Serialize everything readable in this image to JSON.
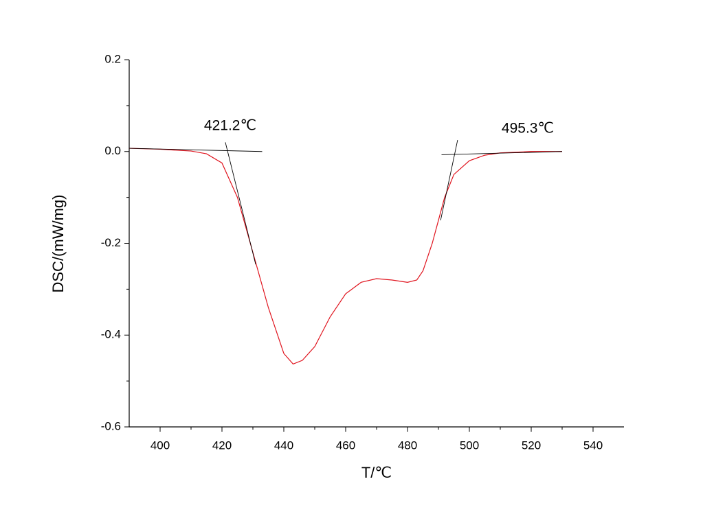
{
  "chart_data": {
    "type": "line",
    "xlabel": "T/℃",
    "ylabel": "DSC/(mW/mg)",
    "x": [
      390,
      400,
      410,
      415,
      420,
      425,
      430,
      435,
      440,
      443,
      446,
      450,
      455,
      460,
      465,
      470,
      475,
      480,
      483,
      485,
      488,
      490,
      492,
      495,
      500,
      505,
      510,
      520,
      530
    ],
    "series": [
      {
        "color": "#e0141e",
        "values": [
          0.007,
          0.005,
          0.001,
          -0.005,
          -0.025,
          -0.1,
          -0.22,
          -0.34,
          -0.44,
          -0.463,
          -0.455,
          -0.425,
          -0.36,
          -0.31,
          -0.285,
          -0.277,
          -0.28,
          -0.285,
          -0.28,
          -0.26,
          -0.2,
          -0.15,
          -0.1,
          -0.05,
          -0.02,
          -0.008,
          -0.003,
          0,
          0
        ]
      }
    ],
    "tangent_lines": [
      {
        "x": [
          390,
          433
        ],
        "y": [
          0.007,
          0
        ]
      },
      {
        "x": [
          421.1,
          430.9
        ],
        "y": [
          0.02,
          -0.246
        ]
      },
      {
        "x": [
          491,
          530
        ],
        "y": [
          -0.007,
          0
        ]
      },
      {
        "x": [
          496.2,
          490.7
        ],
        "y": [
          0.025,
          -0.15
        ]
      }
    ],
    "annotations": [
      "421.2℃",
      "495.3℃"
    ],
    "xlim": [
      390,
      550
    ],
    "xticks": [
      400,
      420,
      440,
      460,
      480,
      500,
      520,
      540
    ],
    "ylim": [
      -0.6,
      0.2
    ],
    "yticks": [
      -0.6,
      -0.4,
      -0.2,
      {
        "value": 0,
        "label": "0.0"
      },
      0.2
    ]
  }
}
